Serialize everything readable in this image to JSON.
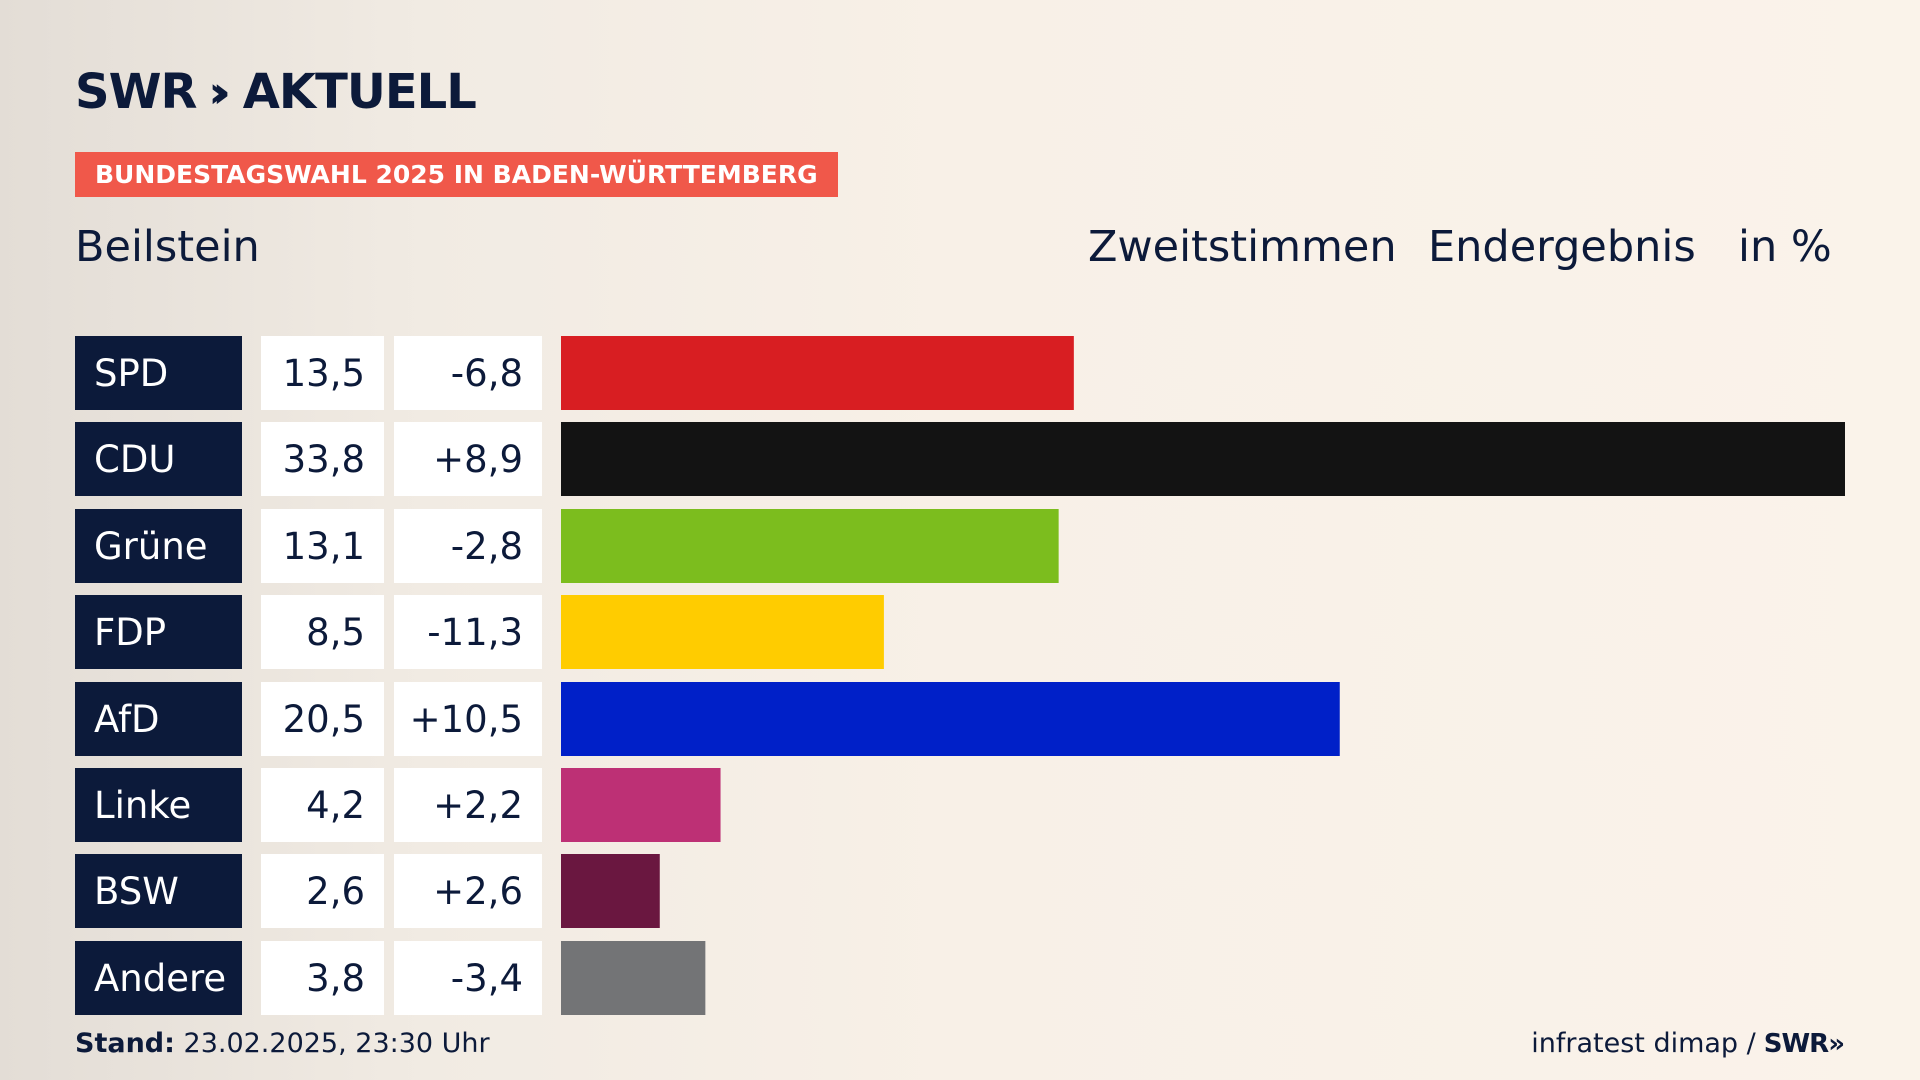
{
  "header": {
    "logo_text": "SWR",
    "logo_chevrons": "››",
    "logo_suffix": "AKTUELL",
    "banner": "BUNDESTAGSWAHL 2025 IN BADEN-WÜRTTEMBERG",
    "place": "Beilstein",
    "col_vote": "Zweitstimmen",
    "col_result": "Endergebnis",
    "col_unit": "in %"
  },
  "footer": {
    "stand_label": "Stand:",
    "stand_value": "23.02.2025, 23:30 Uhr",
    "source": "infratest dimap /",
    "source_logo": "SWR»"
  },
  "colors": {
    "navy": "#0c1a3a",
    "banner": "#f0584a"
  },
  "chart_data": {
    "type": "bar",
    "orientation": "horizontal",
    "categories": [
      "SPD",
      "CDU",
      "Grüne",
      "FDP",
      "AfD",
      "Linke",
      "BSW",
      "Andere"
    ],
    "values": [
      13.5,
      33.8,
      13.1,
      8.5,
      20.5,
      4.2,
      2.6,
      3.8
    ],
    "value_labels": [
      "13,5",
      "33,8",
      "13,1",
      "8,5",
      "20,5",
      "4,2",
      "2,6",
      "3,8"
    ],
    "change_labels": [
      "-6,8",
      "+8,9",
      "-2,8",
      "-11,3",
      "+10,5",
      "+2,2",
      "+2,6",
      "-3,4"
    ],
    "changes": [
      -6.8,
      8.9,
      -2.8,
      -11.3,
      10.5,
      2.2,
      2.6,
      -3.4
    ],
    "bar_colors": [
      "#d81e22",
      "#131313",
      "#7cbd1e",
      "#ffcc00",
      "#0020c8",
      "#bd3075",
      "#6a1740",
      "#737476"
    ],
    "xlim": [
      0,
      33.8
    ],
    "grid": false,
    "legend": "none"
  }
}
